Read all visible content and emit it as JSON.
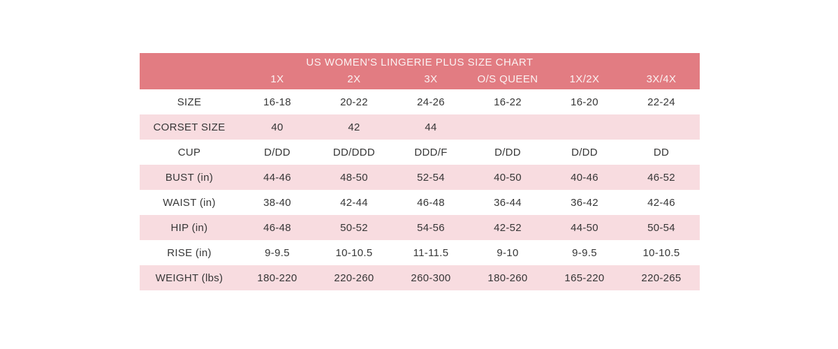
{
  "colors": {
    "page_bg": "#ffffff",
    "header_bg": "#e27c82",
    "header_text": "#fbf2f2",
    "row_bg": "#ffffff",
    "row_alt_bg": "#f8dce0",
    "body_text": "#363636"
  },
  "chart_data": {
    "type": "table",
    "title": "US WOMEN'S LINGERIE PLUS SIZE CHART",
    "columns": [
      "1X",
      "2X",
      "3X",
      "O/S QUEEN",
      "1X/2X",
      "3X/4X"
    ],
    "rows": [
      {
        "label": "SIZE",
        "values": [
          "16-18",
          "20-22",
          "24-26",
          "16-22",
          "16-20",
          "22-24"
        ]
      },
      {
        "label": "CORSET SIZE",
        "values": [
          "40",
          "42",
          "44",
          "",
          "",
          ""
        ]
      },
      {
        "label": "CUP",
        "values": [
          "D/DD",
          "DD/DDD",
          "DDD/F",
          "D/DD",
          "D/DD",
          "DD"
        ]
      },
      {
        "label": "BUST (in)",
        "values": [
          "44-46",
          "48-50",
          "52-54",
          "40-50",
          "40-46",
          "46-52"
        ]
      },
      {
        "label": "WAIST (in)",
        "values": [
          "38-40",
          "42-44",
          "46-48",
          "36-44",
          "36-42",
          "42-46"
        ]
      },
      {
        "label": "HIP (in)",
        "values": [
          "46-48",
          "50-52",
          "54-56",
          "42-52",
          "44-50",
          "50-54"
        ]
      },
      {
        "label": "RISE (in)",
        "values": [
          "9-9.5",
          "10-10.5",
          "11-11.5",
          "9-10",
          "9-9.5",
          "10-10.5"
        ]
      },
      {
        "label": "WEIGHT (lbs)",
        "values": [
          "180-220",
          "220-260",
          "260-300",
          "180-260",
          "165-220",
          "220-265"
        ]
      }
    ]
  }
}
